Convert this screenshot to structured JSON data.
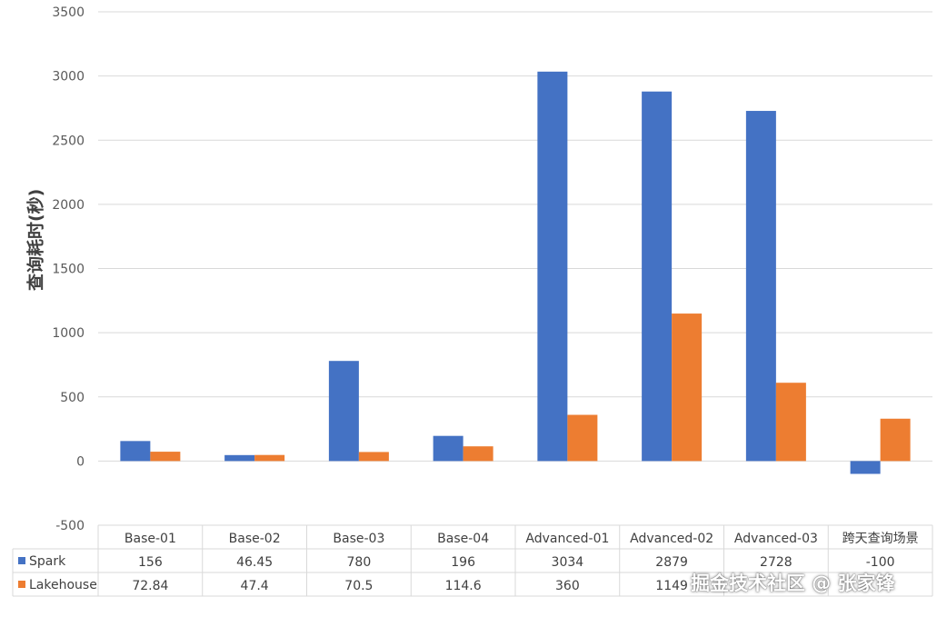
{
  "chart_data": {
    "type": "bar",
    "title": "",
    "xlabel": "",
    "ylabel": "查询耗时(秒)",
    "ylim": [
      -500,
      3500
    ],
    "yticks": [
      3500,
      3000,
      2500,
      2000,
      1500,
      1000,
      500,
      0,
      -500
    ],
    "grid": true,
    "legend": "data-table",
    "categories": [
      "Base-01",
      "Base-02",
      "Base-03",
      "Base-04",
      "Advanced-01",
      "Advanced-02",
      "Advanced-03",
      "跨天查询场景"
    ],
    "series": [
      {
        "name": "Spark",
        "color": "#4472C4",
        "values": [
          156,
          46.45,
          780,
          196,
          3034,
          2879,
          2728,
          -100
        ],
        "labels": [
          "156",
          "46.45",
          "780",
          "196",
          "3034",
          "2879",
          "2728",
          "-100"
        ]
      },
      {
        "name": "Lakehouse",
        "color": "#ED7D31",
        "values": [
          72.84,
          47.4,
          70.5,
          114.6,
          360,
          1149,
          610,
          330
        ],
        "labels": [
          "72.84",
          "47.4",
          "70.5",
          "114.6",
          "360",
          "1149",
          "",
          ""
        ]
      }
    ]
  },
  "watermark": "掘金技术社区 @ 张家锋"
}
